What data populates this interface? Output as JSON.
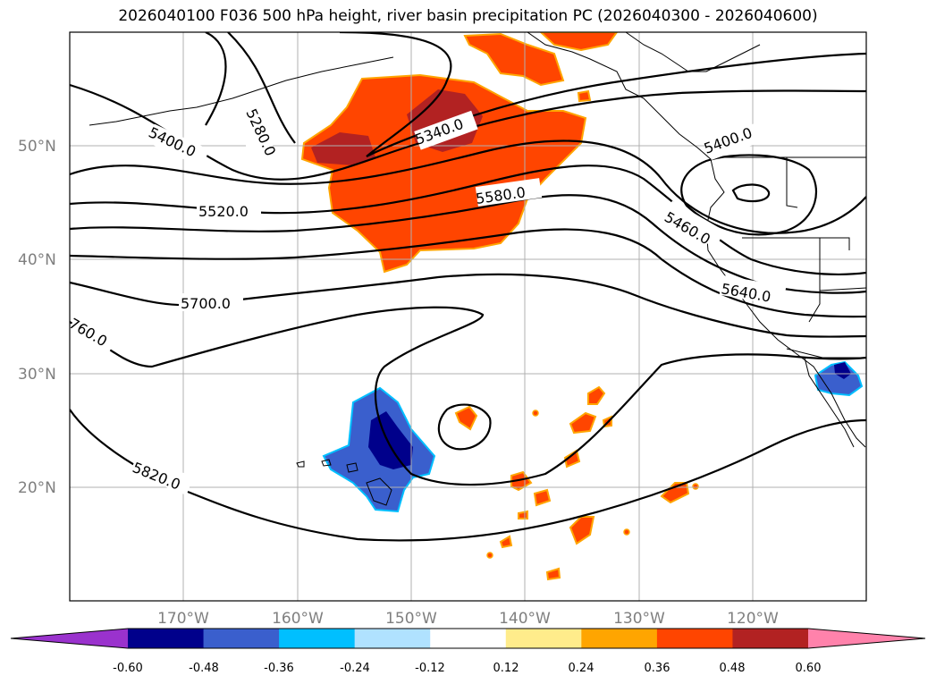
{
  "title": "2026040100 F036 500 hPa height, river basin precipitation PC (2026040300 - 2026040600)",
  "latitude_labels": [
    "50°N",
    "40°N",
    "30°N",
    "20°N"
  ],
  "longitude_labels": [
    "170°W",
    "160°W",
    "150°W",
    "140°W",
    "130°W",
    "120°W"
  ],
  "contour_labels": [
    "5280.0",
    "5340.0",
    "5400.0",
    "5400.0",
    "5460.0",
    "5520.0",
    "5580.0",
    "5640.0",
    "5700.0",
    "760.0",
    "5820.0"
  ],
  "colorbar": {
    "ticks": [
      "-0.60",
      "-0.48",
      "-0.36",
      "-0.24",
      "-0.12",
      "0.12",
      "0.24",
      "0.36",
      "0.48",
      "0.60"
    ],
    "colors": [
      "#9a32cd",
      "#00008b",
      "#3a5fcd",
      "#00bfff",
      "#b0e2ff",
      "#ffffff",
      "#ffec8b",
      "#ffa500",
      "#ff4500",
      "#b22222",
      "#ff82ab"
    ]
  }
}
